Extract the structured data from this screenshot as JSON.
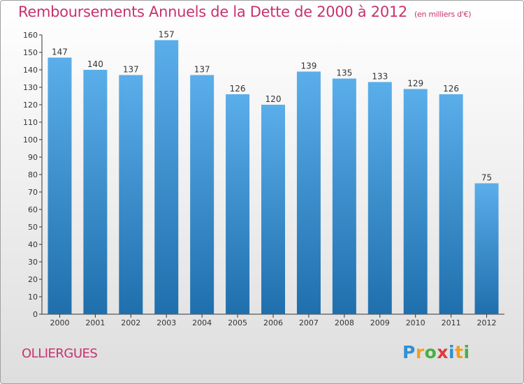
{
  "title": "Remboursements Annuels de la Dette de 2000 à 2012",
  "unit": "(en milliers d'€)",
  "city": "OLLIERGUES",
  "logo_letters": [
    "P",
    "r",
    "o",
    "x",
    "i",
    "t",
    "i"
  ],
  "colors": {
    "title": "#c8326e",
    "bar_top": "#5aaeea",
    "bar_bottom": "#1f6fad",
    "axis": "#333333"
  },
  "chart_data": {
    "type": "bar",
    "title": "Remboursements Annuels de la Dette de 2000 à 2012",
    "xlabel": "",
    "ylabel": "",
    "categories": [
      "2000",
      "2001",
      "2002",
      "2003",
      "2004",
      "2005",
      "2006",
      "2007",
      "2008",
      "2009",
      "2010",
      "2011",
      "2012"
    ],
    "values": [
      147,
      140,
      137,
      157,
      137,
      126,
      120,
      139,
      135,
      133,
      129,
      126,
      75
    ],
    "ylim": [
      0,
      160
    ],
    "yticks": [
      0,
      10,
      20,
      30,
      40,
      50,
      60,
      70,
      80,
      90,
      100,
      110,
      120,
      130,
      140,
      150,
      160
    ],
    "grid": false,
    "legend": "none"
  }
}
